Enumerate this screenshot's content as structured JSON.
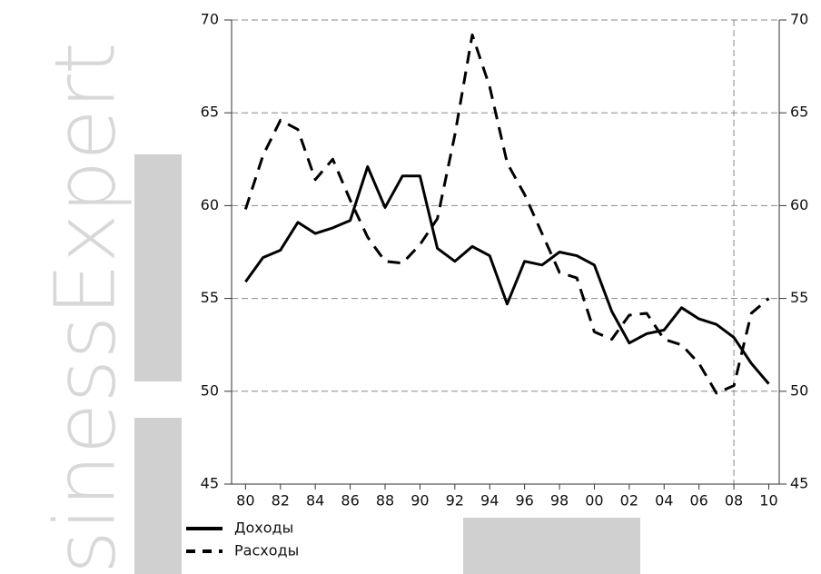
{
  "chart_data": {
    "type": "line",
    "watermark": "sinessExpert",
    "x": [
      1980,
      1981,
      1982,
      1983,
      1984,
      1985,
      1986,
      1987,
      1988,
      1989,
      1990,
      1991,
      1992,
      1993,
      1994,
      1995,
      1996,
      1997,
      1998,
      1999,
      2000,
      2001,
      2002,
      2003,
      2004,
      2005,
      2006,
      2007,
      2008,
      2009,
      2010
    ],
    "series": [
      {
        "name": "Доходы",
        "color": "#000000",
        "dash": "solid",
        "values": [
          55.9,
          57.2,
          57.6,
          59.1,
          58.5,
          58.8,
          59.2,
          62.1,
          59.9,
          61.6,
          61.6,
          57.7,
          57.0,
          57.8,
          57.3,
          54.7,
          57.0,
          56.8,
          57.5,
          57.3,
          56.8,
          54.3,
          52.6,
          53.1,
          53.3,
          54.5,
          53.9,
          53.6,
          52.9,
          51.5,
          50.4
        ]
      },
      {
        "name": "Расходы",
        "color": "#000000",
        "dash": "dashed",
        "values": [
          59.8,
          62.7,
          64.6,
          64.1,
          61.4,
          62.5,
          60.3,
          58.3,
          57.0,
          56.9,
          57.9,
          59.3,
          63.8,
          69.2,
          66.4,
          62.3,
          60.6,
          58.5,
          56.4,
          56.1,
          53.2,
          52.8,
          54.1,
          54.2,
          52.8,
          52.5,
          51.5,
          49.9,
          50.3,
          54.2,
          55.0
        ]
      }
    ],
    "xlim": [
      1979.2,
      2010.6
    ],
    "xticks": [
      {
        "value": 1980,
        "label": "80"
      },
      {
        "value": 1982,
        "label": "82"
      },
      {
        "value": 1984,
        "label": "84"
      },
      {
        "value": 1986,
        "label": "86"
      },
      {
        "value": 1988,
        "label": "88"
      },
      {
        "value": 1990,
        "label": "90"
      },
      {
        "value": 1992,
        "label": "92"
      },
      {
        "value": 1994,
        "label": "94"
      },
      {
        "value": 1996,
        "label": "96"
      },
      {
        "value": 1998,
        "label": "98"
      },
      {
        "value": 2000,
        "label": "00"
      },
      {
        "value": 2002,
        "label": "02"
      },
      {
        "value": 2004,
        "label": "04"
      },
      {
        "value": 2006,
        "label": "06"
      },
      {
        "value": 2008,
        "label": "08"
      },
      {
        "value": 2010,
        "label": "10"
      }
    ],
    "ylim": [
      45,
      70
    ],
    "yticks": [
      45,
      50,
      55,
      60,
      65,
      70
    ],
    "y2lim": [
      45,
      70
    ],
    "y2ticks": [
      45,
      50,
      55,
      60,
      65,
      70
    ],
    "vline": 2008,
    "grid": true,
    "legend": "bottom-left"
  }
}
